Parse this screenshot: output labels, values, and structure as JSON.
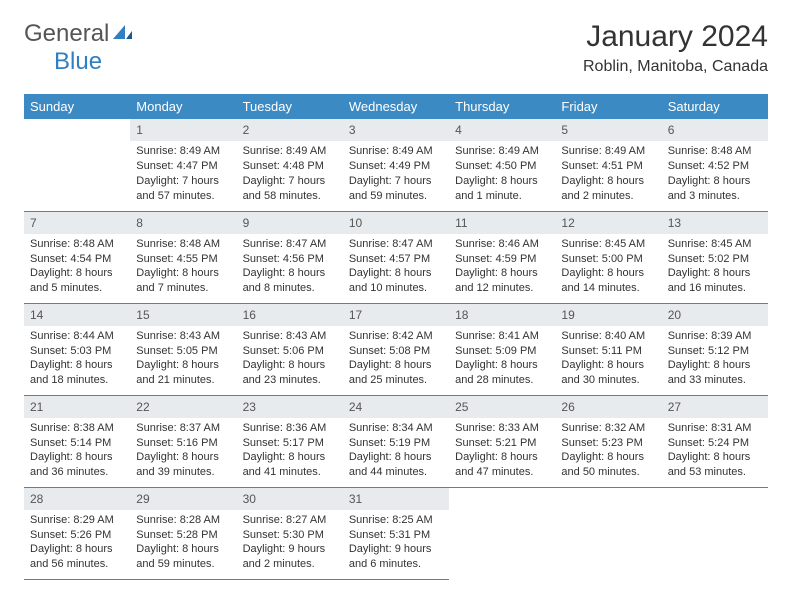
{
  "logo": {
    "general": "General",
    "blue": "Blue",
    "icon_color": "#2f7fc2"
  },
  "title": "January 2024",
  "location": "Roblin, Manitoba, Canada",
  "colors": {
    "header_bg": "#3b8ac4",
    "header_text": "#ffffff",
    "daynum_bg": "#e8ebed",
    "daynum_text": "#555555",
    "border": "#3b8ac4",
    "body_text": "#333333"
  },
  "days_of_week": [
    "Sunday",
    "Monday",
    "Tuesday",
    "Wednesday",
    "Thursday",
    "Friday",
    "Saturday"
  ],
  "weeks": [
    [
      null,
      {
        "n": "1",
        "sr": "Sunrise: 8:49 AM",
        "ss": "Sunset: 4:47 PM",
        "dl": "Daylight: 7 hours and 57 minutes."
      },
      {
        "n": "2",
        "sr": "Sunrise: 8:49 AM",
        "ss": "Sunset: 4:48 PM",
        "dl": "Daylight: 7 hours and 58 minutes."
      },
      {
        "n": "3",
        "sr": "Sunrise: 8:49 AM",
        "ss": "Sunset: 4:49 PM",
        "dl": "Daylight: 7 hours and 59 minutes."
      },
      {
        "n": "4",
        "sr": "Sunrise: 8:49 AM",
        "ss": "Sunset: 4:50 PM",
        "dl": "Daylight: 8 hours and 1 minute."
      },
      {
        "n": "5",
        "sr": "Sunrise: 8:49 AM",
        "ss": "Sunset: 4:51 PM",
        "dl": "Daylight: 8 hours and 2 minutes."
      },
      {
        "n": "6",
        "sr": "Sunrise: 8:48 AM",
        "ss": "Sunset: 4:52 PM",
        "dl": "Daylight: 8 hours and 3 minutes."
      }
    ],
    [
      {
        "n": "7",
        "sr": "Sunrise: 8:48 AM",
        "ss": "Sunset: 4:54 PM",
        "dl": "Daylight: 8 hours and 5 minutes."
      },
      {
        "n": "8",
        "sr": "Sunrise: 8:48 AM",
        "ss": "Sunset: 4:55 PM",
        "dl": "Daylight: 8 hours and 7 minutes."
      },
      {
        "n": "9",
        "sr": "Sunrise: 8:47 AM",
        "ss": "Sunset: 4:56 PM",
        "dl": "Daylight: 8 hours and 8 minutes."
      },
      {
        "n": "10",
        "sr": "Sunrise: 8:47 AM",
        "ss": "Sunset: 4:57 PM",
        "dl": "Daylight: 8 hours and 10 minutes."
      },
      {
        "n": "11",
        "sr": "Sunrise: 8:46 AM",
        "ss": "Sunset: 4:59 PM",
        "dl": "Daylight: 8 hours and 12 minutes."
      },
      {
        "n": "12",
        "sr": "Sunrise: 8:45 AM",
        "ss": "Sunset: 5:00 PM",
        "dl": "Daylight: 8 hours and 14 minutes."
      },
      {
        "n": "13",
        "sr": "Sunrise: 8:45 AM",
        "ss": "Sunset: 5:02 PM",
        "dl": "Daylight: 8 hours and 16 minutes."
      }
    ],
    [
      {
        "n": "14",
        "sr": "Sunrise: 8:44 AM",
        "ss": "Sunset: 5:03 PM",
        "dl": "Daylight: 8 hours and 18 minutes."
      },
      {
        "n": "15",
        "sr": "Sunrise: 8:43 AM",
        "ss": "Sunset: 5:05 PM",
        "dl": "Daylight: 8 hours and 21 minutes."
      },
      {
        "n": "16",
        "sr": "Sunrise: 8:43 AM",
        "ss": "Sunset: 5:06 PM",
        "dl": "Daylight: 8 hours and 23 minutes."
      },
      {
        "n": "17",
        "sr": "Sunrise: 8:42 AM",
        "ss": "Sunset: 5:08 PM",
        "dl": "Daylight: 8 hours and 25 minutes."
      },
      {
        "n": "18",
        "sr": "Sunrise: 8:41 AM",
        "ss": "Sunset: 5:09 PM",
        "dl": "Daylight: 8 hours and 28 minutes."
      },
      {
        "n": "19",
        "sr": "Sunrise: 8:40 AM",
        "ss": "Sunset: 5:11 PM",
        "dl": "Daylight: 8 hours and 30 minutes."
      },
      {
        "n": "20",
        "sr": "Sunrise: 8:39 AM",
        "ss": "Sunset: 5:12 PM",
        "dl": "Daylight: 8 hours and 33 minutes."
      }
    ],
    [
      {
        "n": "21",
        "sr": "Sunrise: 8:38 AM",
        "ss": "Sunset: 5:14 PM",
        "dl": "Daylight: 8 hours and 36 minutes."
      },
      {
        "n": "22",
        "sr": "Sunrise: 8:37 AM",
        "ss": "Sunset: 5:16 PM",
        "dl": "Daylight: 8 hours and 39 minutes."
      },
      {
        "n": "23",
        "sr": "Sunrise: 8:36 AM",
        "ss": "Sunset: 5:17 PM",
        "dl": "Daylight: 8 hours and 41 minutes."
      },
      {
        "n": "24",
        "sr": "Sunrise: 8:34 AM",
        "ss": "Sunset: 5:19 PM",
        "dl": "Daylight: 8 hours and 44 minutes."
      },
      {
        "n": "25",
        "sr": "Sunrise: 8:33 AM",
        "ss": "Sunset: 5:21 PM",
        "dl": "Daylight: 8 hours and 47 minutes."
      },
      {
        "n": "26",
        "sr": "Sunrise: 8:32 AM",
        "ss": "Sunset: 5:23 PM",
        "dl": "Daylight: 8 hours and 50 minutes."
      },
      {
        "n": "27",
        "sr": "Sunrise: 8:31 AM",
        "ss": "Sunset: 5:24 PM",
        "dl": "Daylight: 8 hours and 53 minutes."
      }
    ],
    [
      {
        "n": "28",
        "sr": "Sunrise: 8:29 AM",
        "ss": "Sunset: 5:26 PM",
        "dl": "Daylight: 8 hours and 56 minutes."
      },
      {
        "n": "29",
        "sr": "Sunrise: 8:28 AM",
        "ss": "Sunset: 5:28 PM",
        "dl": "Daylight: 8 hours and 59 minutes."
      },
      {
        "n": "30",
        "sr": "Sunrise: 8:27 AM",
        "ss": "Sunset: 5:30 PM",
        "dl": "Daylight: 9 hours and 2 minutes."
      },
      {
        "n": "31",
        "sr": "Sunrise: 8:25 AM",
        "ss": "Sunset: 5:31 PM",
        "dl": "Daylight: 9 hours and 6 minutes."
      },
      null,
      null,
      null
    ]
  ]
}
